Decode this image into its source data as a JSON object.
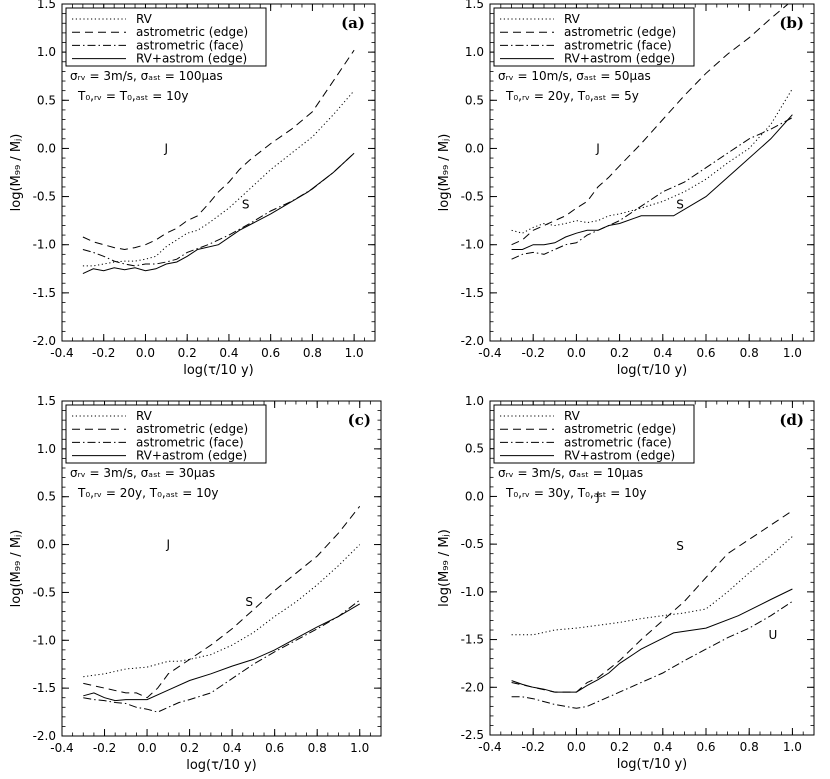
{
  "chart_data": [
    {
      "id": "a",
      "type": "line",
      "label": "(a)",
      "xlabel": "log(τ/10 y)",
      "ylabel": "log(M₉₉ / Mⱼ)",
      "xlim": [
        -0.4,
        1.1
      ],
      "ylim": [
        -2.0,
        1.5
      ],
      "xticks": [
        "-0.4",
        "-0.2",
        "0.0",
        "0.2",
        "0.4",
        "0.6",
        "0.8",
        "1.0"
      ],
      "yticks": [
        "-2.0",
        "-1.5",
        "-1.0",
        "-0.5",
        "0.0",
        "0.5",
        "1.0",
        "1.5"
      ],
      "legend": [
        "RV",
        "astrometric (edge)",
        "astrometric (face)",
        "RV+astrom (edge)"
      ],
      "params": [
        "σᵣᵥ = 3m/s, σₐₛₜ = 100μas",
        "T₀,ᵣᵥ = T₀,ₐₛₜ = 10y"
      ],
      "annotations": [
        {
          "text": "J",
          "x": 0.1,
          "y": 0.0
        },
        {
          "text": "S",
          "x": 0.48,
          "y": -0.58
        }
      ],
      "series": [
        {
          "name": "RV",
          "style": "dotted",
          "x": [
            -0.3,
            -0.25,
            -0.2,
            -0.15,
            -0.1,
            -0.05,
            0.0,
            0.05,
            0.1,
            0.15,
            0.2,
            0.25,
            0.3,
            0.35,
            0.4,
            0.45,
            0.5,
            0.6,
            0.7,
            0.8,
            0.9,
            1.0
          ],
          "y": [
            -1.22,
            -1.22,
            -1.2,
            -1.18,
            -1.17,
            -1.17,
            -1.15,
            -1.12,
            -1.02,
            -0.95,
            -0.88,
            -0.85,
            -0.78,
            -0.7,
            -0.62,
            -0.52,
            -0.42,
            -0.22,
            -0.05,
            0.12,
            0.35,
            0.6
          ]
        },
        {
          "name": "astrometric (edge)",
          "style": "dashed",
          "x": [
            -0.3,
            -0.25,
            -0.2,
            -0.15,
            -0.1,
            -0.05,
            0.0,
            0.05,
            0.1,
            0.15,
            0.2,
            0.25,
            0.3,
            0.35,
            0.4,
            0.45,
            0.5,
            0.6,
            0.7,
            0.8,
            0.9,
            1.0
          ],
          "y": [
            -0.92,
            -0.97,
            -1.0,
            -1.03,
            -1.05,
            -1.03,
            -1.0,
            -0.95,
            -0.88,
            -0.83,
            -0.75,
            -0.7,
            -0.58,
            -0.45,
            -0.35,
            -0.22,
            -0.12,
            0.05,
            0.2,
            0.38,
            0.7,
            1.02
          ]
        },
        {
          "name": "astrometric (face)",
          "style": "dashdot",
          "x": [
            -0.3,
            -0.25,
            -0.2,
            -0.15,
            -0.1,
            -0.05,
            0.0,
            0.05,
            0.1,
            0.15,
            0.2,
            0.3,
            0.4,
            0.5,
            0.6,
            0.7,
            0.8,
            0.9,
            1.0
          ],
          "y": [
            -1.05,
            -1.08,
            -1.12,
            -1.17,
            -1.2,
            -1.22,
            -1.2,
            -1.2,
            -1.18,
            -1.15,
            -1.08,
            -1.0,
            -0.9,
            -0.78,
            -0.65,
            -0.55,
            -0.42,
            -0.25,
            -0.05
          ]
        },
        {
          "name": "RV+astrom (edge)",
          "style": "solid",
          "x": [
            -0.3,
            -0.25,
            -0.2,
            -0.15,
            -0.1,
            -0.05,
            0.0,
            0.05,
            0.1,
            0.15,
            0.2,
            0.25,
            0.35,
            0.45,
            0.6,
            0.78,
            0.9,
            1.0
          ],
          "y": [
            -1.3,
            -1.25,
            -1.27,
            -1.24,
            -1.26,
            -1.24,
            -1.27,
            -1.25,
            -1.2,
            -1.18,
            -1.12,
            -1.05,
            -1.0,
            -0.85,
            -0.68,
            -0.45,
            -0.25,
            -0.05
          ]
        }
      ]
    },
    {
      "id": "b",
      "type": "line",
      "label": "(b)",
      "xlabel": "log(τ/10 y)",
      "ylabel": "log(M₉₉ / Mⱼ)",
      "xlim": [
        -0.4,
        1.1
      ],
      "ylim": [
        -2.0,
        1.5
      ],
      "xticks": [
        "-0.4",
        "-0.2",
        "0.0",
        "0.2",
        "0.4",
        "0.6",
        "0.8",
        "1.0"
      ],
      "yticks": [
        "-2.0",
        "-1.5",
        "-1.0",
        "-0.5",
        "0.0",
        "0.5",
        "1.0",
        "1.5"
      ],
      "legend": [
        "RV",
        "astrometric (edge)",
        "astrometric (face)",
        "RV+astrom (edge)"
      ],
      "params": [
        "σᵣᵥ = 10m/s, σₐₛₜ = 50μas",
        "T₀,ᵣᵥ = 20y, T₀,ₐₛₜ = 5y"
      ],
      "annotations": [
        {
          "text": "J",
          "x": 0.1,
          "y": 0.0
        },
        {
          "text": "S",
          "x": 0.48,
          "y": -0.58
        }
      ],
      "series": [
        {
          "name": "RV",
          "style": "dotted",
          "x": [
            -0.3,
            -0.25,
            -0.2,
            -0.15,
            -0.1,
            -0.05,
            0.0,
            0.05,
            0.1,
            0.15,
            0.2,
            0.3,
            0.4,
            0.5,
            0.6,
            0.7,
            0.8,
            0.9,
            1.0
          ],
          "y": [
            -0.85,
            -0.88,
            -0.82,
            -0.78,
            -0.8,
            -0.78,
            -0.75,
            -0.77,
            -0.75,
            -0.7,
            -0.68,
            -0.62,
            -0.55,
            -0.45,
            -0.32,
            -0.15,
            0.0,
            0.25,
            0.62
          ]
        },
        {
          "name": "astrometric (edge)",
          "style": "dashed",
          "x": [
            -0.3,
            -0.25,
            -0.2,
            -0.15,
            -0.1,
            -0.05,
            0.0,
            0.05,
            0.1,
            0.15,
            0.2,
            0.3,
            0.4,
            0.5,
            0.6,
            0.7,
            0.8,
            0.9,
            0.98
          ],
          "y": [
            -1.0,
            -0.95,
            -0.85,
            -0.8,
            -0.75,
            -0.7,
            -0.62,
            -0.55,
            -0.4,
            -0.3,
            -0.18,
            0.05,
            0.3,
            0.55,
            0.78,
            0.98,
            1.15,
            1.35,
            1.5
          ]
        },
        {
          "name": "astrometric (face)",
          "style": "dashdot",
          "x": [
            -0.3,
            -0.25,
            -0.2,
            -0.15,
            -0.1,
            -0.05,
            0.0,
            0.05,
            0.1,
            0.15,
            0.2,
            0.3,
            0.4,
            0.5,
            0.6,
            0.7,
            0.8,
            0.9,
            1.0
          ],
          "y": [
            -1.15,
            -1.1,
            -1.08,
            -1.1,
            -1.05,
            -1.0,
            -0.98,
            -0.9,
            -0.85,
            -0.8,
            -0.75,
            -0.6,
            -0.45,
            -0.35,
            -0.2,
            -0.05,
            0.1,
            0.2,
            0.32
          ]
        },
        {
          "name": "RV+astrom (edge)",
          "style": "solid",
          "x": [
            -0.3,
            -0.25,
            -0.2,
            -0.15,
            -0.1,
            -0.05,
            0.0,
            0.05,
            0.1,
            0.15,
            0.2,
            0.3,
            0.45,
            0.6,
            0.75,
            0.9,
            1.0
          ],
          "y": [
            -1.05,
            -1.05,
            -1.0,
            -1.0,
            -0.98,
            -0.92,
            -0.88,
            -0.85,
            -0.85,
            -0.8,
            -0.78,
            -0.7,
            -0.7,
            -0.5,
            -0.2,
            0.1,
            0.35
          ]
        }
      ]
    },
    {
      "id": "c",
      "type": "line",
      "label": "(c)",
      "xlabel": "log(τ/10 y)",
      "ylabel": "log(M₉₉ / Mⱼ)",
      "xlim": [
        -0.4,
        1.1
      ],
      "ylim": [
        -2.0,
        1.5
      ],
      "xticks": [
        "-0.4",
        "-0.2",
        "0.0",
        "0.2",
        "0.4",
        "0.6",
        "0.8",
        "1.0"
      ],
      "yticks": [
        "-2.0",
        "-1.5",
        "-1.0",
        "-0.5",
        "0.0",
        "0.5",
        "1.0",
        "1.5"
      ],
      "legend": [
        "RV",
        "astrometric (edge)",
        "astrometric (face)",
        "RV+astrom (edge)"
      ],
      "params": [
        "σᵣᵥ = 3m/s, σₐₛₜ = 30μas",
        "T₀,ᵣᵥ = 20y, T₀,ₐₛₜ = 10y"
      ],
      "annotations": [
        {
          "text": "J",
          "x": 0.1,
          "y": 0.0
        },
        {
          "text": "S",
          "x": 0.48,
          "y": -0.6
        }
      ],
      "series": [
        {
          "name": "RV",
          "style": "dotted",
          "x": [
            -0.3,
            -0.2,
            -0.1,
            0.0,
            0.05,
            0.1,
            0.15,
            0.2,
            0.3,
            0.4,
            0.5,
            0.6,
            0.7,
            0.8,
            0.9,
            1.0
          ],
          "y": [
            -1.38,
            -1.35,
            -1.3,
            -1.28,
            -1.25,
            -1.22,
            -1.22,
            -1.2,
            -1.15,
            -1.05,
            -0.92,
            -0.75,
            -0.6,
            -0.42,
            -0.22,
            0.0
          ]
        },
        {
          "name": "astrometric (edge)",
          "style": "dashed",
          "x": [
            -0.3,
            -0.2,
            -0.1,
            -0.05,
            0.0,
            0.05,
            0.1,
            0.2,
            0.3,
            0.4,
            0.5,
            0.6,
            0.7,
            0.8,
            0.9,
            1.0
          ],
          "y": [
            -1.45,
            -1.5,
            -1.55,
            -1.55,
            -1.6,
            -1.5,
            -1.35,
            -1.2,
            -1.05,
            -0.88,
            -0.68,
            -0.48,
            -0.3,
            -0.12,
            0.12,
            0.4
          ]
        },
        {
          "name": "astrometric (face)",
          "style": "dashdot",
          "x": [
            -0.3,
            -0.25,
            -0.2,
            -0.15,
            -0.1,
            -0.05,
            0.0,
            0.05,
            0.1,
            0.15,
            0.2,
            0.3,
            0.4,
            0.5,
            0.6,
            0.7,
            0.8,
            0.9,
            1.0
          ],
          "y": [
            -1.6,
            -1.62,
            -1.63,
            -1.65,
            -1.66,
            -1.7,
            -1.72,
            -1.75,
            -1.7,
            -1.65,
            -1.62,
            -1.55,
            -1.4,
            -1.25,
            -1.12,
            -1.0,
            -0.88,
            -0.75,
            -0.58
          ]
        },
        {
          "name": "RV+astrom (edge)",
          "style": "solid",
          "x": [
            -0.3,
            -0.25,
            -0.2,
            -0.15,
            -0.1,
            -0.05,
            0.0,
            0.1,
            0.2,
            0.3,
            0.4,
            0.5,
            0.6,
            0.7,
            0.8,
            0.9,
            1.0
          ],
          "y": [
            -1.58,
            -1.55,
            -1.6,
            -1.63,
            -1.62,
            -1.62,
            -1.62,
            -1.52,
            -1.42,
            -1.35,
            -1.27,
            -1.2,
            -1.1,
            -0.98,
            -0.86,
            -0.75,
            -0.62
          ]
        }
      ]
    },
    {
      "id": "d",
      "type": "line",
      "label": "(d)",
      "xlabel": "log(τ/10 y)",
      "ylabel": "log(M₉₉ / Mⱼ)",
      "xlim": [
        -0.4,
        1.1
      ],
      "ylim": [
        -2.5,
        1.0
      ],
      "xticks": [
        "-0.4",
        "-0.2",
        "0.0",
        "0.2",
        "0.4",
        "0.6",
        "0.8",
        "1.0"
      ],
      "yticks": [
        "-2.5",
        "-2.0",
        "-1.5",
        "-1.0",
        "-0.5",
        "0.0",
        "0.5",
        "1.0"
      ],
      "legend": [
        "RV",
        "astrometric (edge)",
        "astrometric (face)",
        "RV+astrom (edge)"
      ],
      "params": [
        "σᵣᵥ = 3m/s, σₐₛₜ = 10μas",
        "T₀,ᵣᵥ = 30y, T₀,ₐₛₜ = 10y"
      ],
      "annotations": [
        {
          "text": "J",
          "x": 0.1,
          "y": 0.0
        },
        {
          "text": "S",
          "x": 0.48,
          "y": -0.52
        },
        {
          "text": "U",
          "x": 0.91,
          "y": -1.45
        }
      ],
      "series": [
        {
          "name": "RV",
          "style": "dotted",
          "x": [
            -0.3,
            -0.2,
            -0.1,
            0.0,
            0.1,
            0.2,
            0.3,
            0.4,
            0.5,
            0.6,
            0.7,
            0.8,
            0.9,
            1.0
          ],
          "y": [
            -1.45,
            -1.45,
            -1.4,
            -1.38,
            -1.35,
            -1.32,
            -1.28,
            -1.25,
            -1.22,
            -1.18,
            -1.0,
            -0.8,
            -0.62,
            -0.42
          ]
        },
        {
          "name": "astrometric (edge)",
          "style": "dashed",
          "x": [
            -0.3,
            -0.2,
            -0.1,
            -0.05,
            0.0,
            0.05,
            0.1,
            0.2,
            0.3,
            0.4,
            0.5,
            0.6,
            0.7,
            0.8,
            0.9,
            1.0
          ],
          "y": [
            -1.95,
            -2.0,
            -2.05,
            -2.05,
            -2.05,
            -1.95,
            -1.9,
            -1.72,
            -1.5,
            -1.3,
            -1.1,
            -0.85,
            -0.6,
            -0.45,
            -0.3,
            -0.15
          ]
        },
        {
          "name": "astrometric (face)",
          "style": "dashdot",
          "x": [
            -0.3,
            -0.25,
            -0.2,
            -0.15,
            -0.1,
            -0.05,
            0.0,
            0.05,
            0.1,
            0.2,
            0.3,
            0.4,
            0.5,
            0.6,
            0.7,
            0.8,
            0.9,
            1.0
          ],
          "y": [
            -2.1,
            -2.1,
            -2.12,
            -2.15,
            -2.18,
            -2.2,
            -2.22,
            -2.2,
            -2.15,
            -2.05,
            -1.95,
            -1.85,
            -1.72,
            -1.6,
            -1.48,
            -1.38,
            -1.25,
            -1.1
          ]
        },
        {
          "name": "RV+astrom (edge)",
          "style": "solid",
          "x": [
            -0.3,
            -0.25,
            -0.2,
            -0.15,
            -0.1,
            -0.05,
            0.0,
            0.05,
            0.1,
            0.15,
            0.2,
            0.3,
            0.45,
            0.6,
            0.75,
            0.9,
            1.0
          ],
          "y": [
            -1.93,
            -1.97,
            -2.0,
            -2.02,
            -2.05,
            -2.05,
            -2.05,
            -1.98,
            -1.92,
            -1.85,
            -1.75,
            -1.6,
            -1.43,
            -1.38,
            -1.25,
            -1.08,
            -0.97
          ]
        }
      ]
    }
  ]
}
